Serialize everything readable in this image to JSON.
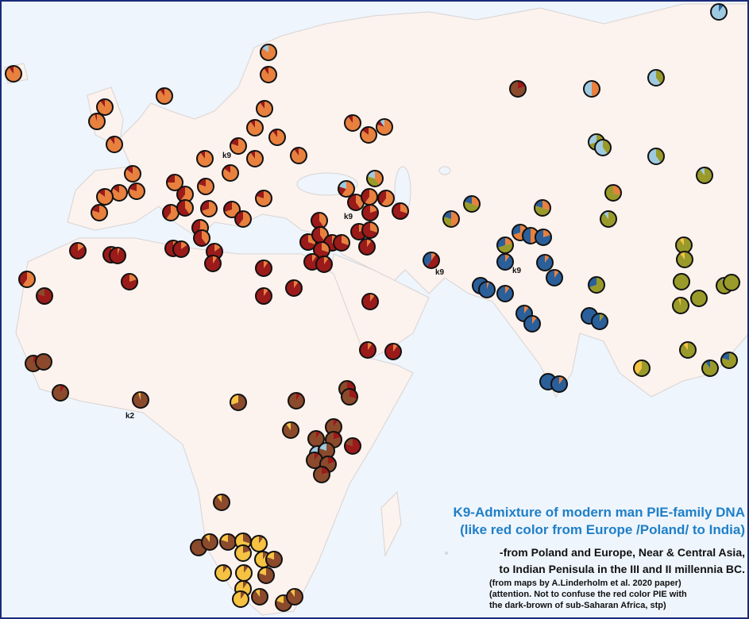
{
  "map": {
    "title": [
      "K9-Admixture of modern man PIE-family DNA",
      "(like red color from Europe /Poland/ to India)"
    ],
    "notes": [
      "-from Poland and Europe, Near & Central Asia,",
      "to Indian Penisula in the III and II millennia BC.",
      "(from maps by A.Linderholm et al. 2020 paper)",
      "(attention. Not to confuse the red color PIE with",
      "the dark-brown of sub-Saharan Africa, stp)"
    ],
    "labels": [
      "k9",
      "k9",
      "k9",
      "k9",
      "k2"
    ],
    "pie_colors": [
      "#e8803e",
      "#9b1a1a",
      "#8b4a2b",
      "#9a9a2a",
      "#2a5f9a",
      "#9ecae1",
      "#f5c242"
    ],
    "pies": [
      [
        90,
        10,
        0,
        0,
        0,
        0,
        0
      ],
      [
        85,
        0,
        0,
        0,
        0,
        15,
        0
      ],
      [
        90,
        10,
        0,
        0,
        0,
        0,
        0
      ],
      [
        90,
        10,
        0,
        0,
        0,
        0,
        0
      ],
      [
        90,
        10,
        0,
        0,
        0,
        0,
        0
      ],
      [
        95,
        5,
        0,
        0,
        0,
        0,
        0
      ],
      [
        90,
        10,
        0,
        0,
        0,
        0,
        0
      ],
      [
        90,
        10,
        0,
        0,
        0,
        0,
        0
      ],
      [
        90,
        10,
        0,
        0,
        0,
        0,
        0
      ],
      [
        90,
        10,
        0,
        0,
        0,
        0,
        0
      ],
      [
        80,
        20,
        0,
        0,
        0,
        0,
        0
      ],
      [
        90,
        10,
        0,
        0,
        0,
        0,
        0
      ],
      [
        85,
        15,
        0,
        0,
        0,
        0,
        0
      ],
      [
        90,
        10,
        0,
        0,
        0,
        0,
        0
      ],
      [
        90,
        10,
        0,
        0,
        0,
        0,
        0
      ],
      [
        90,
        10,
        0,
        0,
        0,
        0,
        0
      ],
      [
        85,
        15,
        0,
        0,
        0,
        0,
        0
      ],
      [
        80,
        10,
        0,
        0,
        0,
        10,
        0
      ],
      [
        85,
        15,
        0,
        0,
        0,
        0,
        0
      ],
      [
        80,
        20,
        0,
        0,
        0,
        0,
        0
      ],
      [
        85,
        15,
        0,
        0,
        0,
        0,
        0
      ],
      [
        85,
        15,
        0,
        0,
        0,
        0,
        0
      ],
      [
        80,
        20,
        0,
        0,
        0,
        0,
        0
      ],
      [
        75,
        25,
        0,
        0,
        0,
        0,
        0
      ],
      [
        60,
        40,
        0,
        0,
        0,
        0,
        0
      ],
      [
        80,
        20,
        0,
        0,
        0,
        0,
        0
      ],
      [
        60,
        40,
        0,
        0,
        0,
        0,
        0
      ],
      [
        40,
        60,
        0,
        0,
        0,
        0,
        0
      ],
      [
        70,
        30,
        0,
        0,
        0,
        0,
        0
      ],
      [
        70,
        30,
        0,
        0,
        0,
        0,
        0
      ],
      [
        60,
        40,
        0,
        0,
        0,
        0,
        0
      ],
      [
        80,
        20,
        0,
        0,
        0,
        0,
        0
      ],
      [
        55,
        45,
        0,
        0,
        0,
        0,
        0
      ],
      [
        40,
        60,
        0,
        0,
        0,
        0,
        0
      ],
      [
        15,
        85,
        0,
        0,
        0,
        0,
        0
      ],
      [
        10,
        90,
        0,
        0,
        0,
        0,
        0
      ],
      [
        20,
        80,
        0,
        0,
        0,
        0,
        0
      ],
      [
        15,
        85,
        0,
        0,
        0,
        0,
        0
      ],
      [
        15,
        85,
        0,
        0,
        0,
        0,
        0
      ],
      [
        10,
        90,
        0,
        0,
        0,
        0,
        0
      ],
      [
        5,
        95,
        0,
        0,
        0,
        0,
        0
      ],
      [
        20,
        80,
        0,
        0,
        0,
        0,
        0
      ],
      [
        60,
        40,
        0,
        0,
        0,
        0,
        0
      ],
      [
        0,
        80,
        20,
        0,
        0,
        0,
        0
      ],
      [
        10,
        90,
        0,
        0,
        0,
        0,
        0
      ],
      [
        10,
        90,
        0,
        0,
        0,
        0,
        0
      ],
      [
        10,
        90,
        0,
        0,
        0,
        0,
        0
      ],
      [
        30,
        70,
        0,
        0,
        0,
        0,
        0
      ],
      [
        40,
        60,
        0,
        0,
        0,
        0,
        0
      ],
      [
        40,
        60,
        0,
        0,
        0,
        0,
        0
      ],
      [
        30,
        70,
        0,
        0,
        0,
        0,
        0
      ],
      [
        30,
        70,
        0,
        0,
        0,
        0,
        0
      ],
      [
        30,
        70,
        0,
        0,
        0,
        0,
        0
      ],
      [
        10,
        90,
        0,
        0,
        0,
        0,
        0
      ],
      [
        10,
        90,
        0,
        0,
        0,
        0,
        0
      ],
      [
        60,
        20,
        0,
        0,
        0,
        20,
        0
      ],
      [
        40,
        0,
        0,
        40,
        0,
        20,
        0
      ],
      [
        40,
        60,
        0,
        0,
        0,
        0,
        0
      ],
      [
        60,
        40,
        0,
        0,
        0,
        0,
        0
      ],
      [
        60,
        40,
        0,
        0,
        0,
        0,
        0
      ],
      [
        30,
        70,
        0,
        0,
        0,
        0,
        0
      ],
      [
        20,
        80,
        0,
        0,
        0,
        0,
        0
      ],
      [
        20,
        80,
        0,
        0,
        0,
        0,
        0
      ],
      [
        30,
        70,
        0,
        0,
        0,
        0,
        0
      ],
      [
        10,
        90,
        0,
        0,
        0,
        0,
        0
      ],
      [
        10,
        90,
        0,
        0,
        0,
        0,
        0
      ],
      [
        10,
        90,
        0,
        0,
        0,
        0,
        0
      ],
      [
        10,
        90,
        0,
        0,
        0,
        0,
        0
      ],
      [
        10,
        50,
        0,
        0,
        40,
        0,
        0
      ],
      [
        50,
        0,
        0,
        30,
        20,
        0,
        0
      ],
      [
        30,
        0,
        0,
        50,
        20,
        0,
        0
      ],
      [
        30,
        0,
        0,
        50,
        20,
        0,
        0
      ],
      [
        0,
        20,
        80,
        0,
        0,
        0,
        0
      ],
      [
        50,
        0,
        0,
        0,
        0,
        50,
        0
      ],
      [
        0,
        0,
        0,
        40,
        0,
        60,
        0
      ],
      [
        0,
        0,
        0,
        0,
        10,
        90,
        0
      ],
      [
        0,
        0,
        0,
        70,
        0,
        30,
        0
      ],
      [
        0,
        0,
        0,
        40,
        0,
        60,
        0
      ],
      [
        0,
        0,
        0,
        40,
        0,
        60,
        0
      ],
      [
        30,
        0,
        0,
        70,
        0,
        0,
        0
      ],
      [
        0,
        0,
        0,
        90,
        0,
        10,
        0
      ],
      [
        0,
        0,
        0,
        90,
        0,
        10,
        0
      ],
      [
        0,
        0,
        0,
        90,
        0,
        0,
        10
      ],
      [
        20,
        0,
        0,
        50,
        30,
        0,
        0
      ],
      [
        70,
        0,
        0,
        0,
        30,
        0,
        0
      ],
      [
        50,
        0,
        0,
        0,
        50,
        0,
        0
      ],
      [
        20,
        0,
        0,
        0,
        80,
        0,
        0
      ],
      [
        10,
        0,
        0,
        0,
        90,
        0,
        0
      ],
      [
        10,
        0,
        0,
        0,
        90,
        0,
        0
      ],
      [
        10,
        0,
        0,
        0,
        90,
        0,
        0
      ],
      [
        0,
        0,
        0,
        0,
        100,
        0,
        0
      ],
      [
        5,
        0,
        0,
        0,
        95,
        0,
        0
      ],
      [
        10,
        0,
        0,
        0,
        90,
        0,
        0
      ],
      [
        0,
        0,
        0,
        70,
        30,
        0,
        0
      ],
      [
        10,
        0,
        0,
        0,
        90,
        0,
        0
      ],
      [
        10,
        0,
        0,
        0,
        90,
        0,
        0
      ],
      [
        0,
        0,
        0,
        0,
        100,
        0,
        0
      ],
      [
        0,
        0,
        0,
        10,
        90,
        0,
        0
      ],
      [
        0,
        0,
        0,
        0,
        100,
        0,
        0
      ],
      [
        10,
        0,
        0,
        0,
        90,
        0,
        0
      ],
      [
        0,
        0,
        0,
        100,
        0,
        0,
        0
      ],
      [
        0,
        0,
        0,
        95,
        0,
        0,
        5
      ],
      [
        0,
        0,
        0,
        100,
        0,
        0,
        0
      ],
      [
        0,
        0,
        0,
        90,
        0,
        0,
        10
      ],
      [
        0,
        0,
        0,
        95,
        0,
        5,
        0
      ],
      [
        0,
        0,
        0,
        100,
        0,
        0,
        0
      ],
      [
        0,
        0,
        0,
        90,
        0,
        0,
        10
      ],
      [
        0,
        0,
        0,
        80,
        20,
        0,
        0
      ],
      [
        0,
        0,
        0,
        90,
        10,
        0,
        0
      ],
      [
        0,
        0,
        0,
        60,
        0,
        0,
        40
      ],
      [
        0,
        10,
        90,
        0,
        0,
        0,
        0
      ],
      [
        0,
        0,
        100,
        0,
        0,
        0,
        0
      ],
      [
        0,
        10,
        90,
        0,
        0,
        0,
        0
      ],
      [
        0,
        0,
        95,
        0,
        0,
        0,
        5
      ],
      [
        0,
        0,
        70,
        0,
        0,
        0,
        30
      ],
      [
        0,
        10,
        90,
        0,
        0,
        0,
        0
      ],
      [
        0,
        30,
        70,
        0,
        0,
        0,
        0
      ],
      [
        0,
        30,
        70,
        0,
        0,
        0,
        0
      ],
      [
        0,
        0,
        90,
        0,
        0,
        0,
        10
      ],
      [
        0,
        10,
        90,
        0,
        0,
        0,
        0
      ],
      [
        0,
        10,
        90,
        0,
        0,
        0,
        0
      ],
      [
        0,
        20,
        80,
        0,
        0,
        0,
        0
      ],
      [
        0,
        80,
        20,
        0,
        0,
        0,
        0
      ],
      [
        0,
        0,
        70,
        0,
        0,
        30,
        0
      ],
      [
        0,
        0,
        80,
        0,
        0,
        20,
        0
      ],
      [
        0,
        10,
        90,
        0,
        0,
        0,
        0
      ],
      [
        0,
        20,
        80,
        0,
        0,
        0,
        0
      ],
      [
        0,
        20,
        80,
        0,
        0,
        0,
        0
      ],
      [
        0,
        0,
        90,
        0,
        0,
        0,
        10
      ],
      [
        0,
        0,
        100,
        0,
        0,
        0,
        0
      ],
      [
        0,
        0,
        90,
        0,
        0,
        0,
        10
      ],
      [
        0,
        0,
        80,
        0,
        0,
        0,
        20
      ],
      [
        0,
        0,
        30,
        0,
        0,
        0,
        70
      ],
      [
        0,
        0,
        10,
        0,
        0,
        0,
        90
      ],
      [
        0,
        0,
        20,
        0,
        0,
        0,
        80
      ],
      [
        0,
        0,
        10,
        0,
        0,
        0,
        90
      ],
      [
        0,
        0,
        80,
        0,
        0,
        0,
        20
      ],
      [
        0,
        0,
        10,
        0,
        0,
        0,
        90
      ],
      [
        0,
        0,
        10,
        0,
        0,
        0,
        90
      ],
      [
        0,
        0,
        80,
        0,
        0,
        0,
        20
      ],
      [
        0,
        0,
        10,
        0,
        0,
        0,
        90
      ],
      [
        0,
        0,
        10,
        0,
        0,
        0,
        90
      ],
      [
        0,
        0,
        90,
        0,
        0,
        0,
        10
      ],
      [
        0,
        0,
        80,
        0,
        0,
        0,
        20
      ],
      [
        0,
        0,
        90,
        0,
        0,
        0,
        10
      ]
    ]
  }
}
